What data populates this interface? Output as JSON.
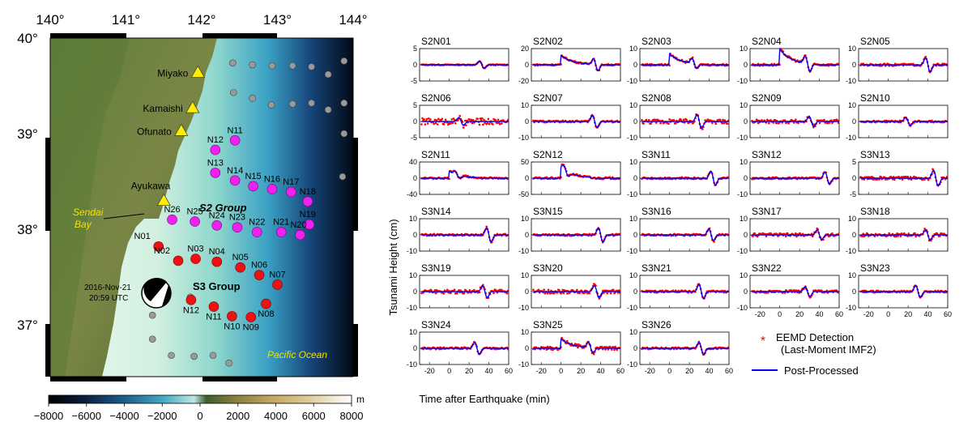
{
  "map": {
    "lon_ticks": [
      "140°",
      "141°",
      "142°",
      "143°",
      "144°"
    ],
    "lat_ticks": [
      "40°",
      "39°",
      "38°",
      "37°"
    ],
    "cities": [
      {
        "name": "Miyako",
        "lon": 141.95,
        "lat": 39.64
      },
      {
        "name": "Kamaishi",
        "lon": 141.88,
        "lat": 39.27
      },
      {
        "name": "Ofunato",
        "lon": 141.73,
        "lat": 39.03
      },
      {
        "name": "Ayukawa",
        "lon": 141.5,
        "lat": 38.3
      }
    ],
    "bay_label": "Sendai\nBay",
    "ocean_label": "Pacific Ocean",
    "s2_group_label": "S2 Group",
    "s3_group_label": "S3 Group",
    "event_date": "2016-Nov-21",
    "event_time": "20:59 UTC",
    "colorbar_unit": "m",
    "colorbar_ticks": [
      "−8000",
      "−6000",
      "−4000",
      "−2000",
      "0",
      "2000",
      "4000",
      "6000",
      "8000"
    ],
    "s2_stations": [
      {
        "name": "N11",
        "lon": 142.44,
        "lat": 38.93
      },
      {
        "name": "N12",
        "lon": 142.18,
        "lat": 38.83
      },
      {
        "name": "N13",
        "lon": 142.18,
        "lat": 38.59
      },
      {
        "name": "N14",
        "lon": 142.44,
        "lat": 38.51
      },
      {
        "name": "N15",
        "lon": 142.68,
        "lat": 38.45
      },
      {
        "name": "N16",
        "lon": 142.93,
        "lat": 38.42
      },
      {
        "name": "N17",
        "lon": 143.18,
        "lat": 38.39
      },
      {
        "name": "N18",
        "lon": 143.4,
        "lat": 38.29
      },
      {
        "name": "N19",
        "lon": 143.42,
        "lat": 38.05
      },
      {
        "name": "N20",
        "lon": 143.3,
        "lat": 37.94
      },
      {
        "name": "N21",
        "lon": 143.05,
        "lat": 37.97
      },
      {
        "name": "N22",
        "lon": 142.73,
        "lat": 37.97
      },
      {
        "name": "N23",
        "lon": 142.47,
        "lat": 38.02
      },
      {
        "name": "N24",
        "lon": 142.2,
        "lat": 38.04
      },
      {
        "name": "N25",
        "lon": 141.91,
        "lat": 38.08
      },
      {
        "name": "N26",
        "lon": 141.61,
        "lat": 38.1
      }
    ],
    "s3_stations": [
      {
        "name": "N01",
        "lon": 141.43,
        "lat": 37.82
      },
      {
        "name": "N02",
        "lon": 141.69,
        "lat": 37.67
      },
      {
        "name": "N03",
        "lon": 141.92,
        "lat": 37.69
      },
      {
        "name": "N04",
        "lon": 142.2,
        "lat": 37.66
      },
      {
        "name": "N05",
        "lon": 142.51,
        "lat": 37.6
      },
      {
        "name": "N06",
        "lon": 142.76,
        "lat": 37.52
      },
      {
        "name": "N07",
        "lon": 143.0,
        "lat": 37.42
      },
      {
        "name": "N08",
        "lon": 142.85,
        "lat": 37.22
      },
      {
        "name": "N09",
        "lon": 142.65,
        "lat": 37.08
      },
      {
        "name": "N10",
        "lon": 142.4,
        "lat": 37.09
      },
      {
        "name": "N11",
        "lon": 142.16,
        "lat": 37.19
      },
      {
        "name": "N12",
        "lon": 141.86,
        "lat": 37.26
      }
    ],
    "other_stations": [
      {
        "lon": 142.41,
        "lat": 39.74
      },
      {
        "lon": 142.67,
        "lat": 39.72
      },
      {
        "lon": 142.93,
        "lat": 39.71
      },
      {
        "lon": 143.2,
        "lat": 39.71
      },
      {
        "lon": 143.45,
        "lat": 39.7
      },
      {
        "lon": 143.67,
        "lat": 39.62
      },
      {
        "lon": 143.88,
        "lat": 39.76
      },
      {
        "lon": 142.42,
        "lat": 39.43
      },
      {
        "lon": 142.67,
        "lat": 39.37
      },
      {
        "lon": 142.92,
        "lat": 39.3
      },
      {
        "lon": 143.2,
        "lat": 39.31
      },
      {
        "lon": 143.45,
        "lat": 39.32
      },
      {
        "lon": 143.67,
        "lat": 39.25
      },
      {
        "lon": 143.88,
        "lat": 39.32
      },
      {
        "lon": 143.88,
        "lat": 39.0
      },
      {
        "lon": 143.86,
        "lat": 38.55
      },
      {
        "lon": 141.85,
        "lat": 37.29
      },
      {
        "lon": 141.35,
        "lat": 37.1
      },
      {
        "lon": 141.35,
        "lat": 36.85
      },
      {
        "lon": 141.6,
        "lat": 36.68
      },
      {
        "lon": 141.9,
        "lat": 36.67
      },
      {
        "lon": 142.15,
        "lat": 36.68
      },
      {
        "lon": 142.36,
        "lat": 36.6
      }
    ]
  },
  "chart_data": {
    "type": "line",
    "layout": "small multiples 6x5",
    "xlabel": "Time after Earthquake (min)",
    "ylabel": "Tsunami Height (cm)",
    "x_ticks": [
      -20,
      0,
      20,
      40,
      60
    ],
    "xlim": [
      -30,
      60
    ],
    "legend": [
      {
        "label": "EEMD Detection\n(Last-Moment IMF2)",
        "marker": "star",
        "color": "#ff0000"
      },
      {
        "label": "Post-Processed",
        "marker": "line",
        "color": "#0000ff"
      }
    ],
    "panels": [
      {
        "title": "S2N01",
        "ylim": [
          -5,
          5
        ],
        "yticks": [
          -5,
          0,
          5
        ],
        "arrival": 33,
        "amp": 1.8,
        "spike": 0,
        "noise": 0.15
      },
      {
        "title": "S2N02",
        "ylim": [
          -20,
          20
        ],
        "yticks": [
          -20,
          0,
          20
        ],
        "arrival": 35,
        "amp": 12,
        "spike": 12,
        "noise": 1.0
      },
      {
        "title": "S2N03",
        "ylim": [
          -10,
          10
        ],
        "yticks": [
          -10,
          0,
          10
        ],
        "arrival": 25,
        "amp": 5,
        "spike": 7,
        "noise": 0.6
      },
      {
        "title": "S2N04",
        "ylim": [
          -10,
          10
        ],
        "yticks": [
          -10,
          0,
          10
        ],
        "arrival": 28,
        "amp": 7,
        "spike": 10,
        "noise": 0.7
      },
      {
        "title": "S2N05",
        "ylim": [
          -10,
          10
        ],
        "yticks": [
          -10,
          0,
          10
        ],
        "arrival": 40,
        "amp": 7,
        "spike": 0,
        "noise": 0.7
      },
      {
        "title": "S2N06",
        "ylim": [
          -5,
          5
        ],
        "yticks": [
          -5,
          0,
          5
        ],
        "arrival": 12,
        "amp": 2,
        "spike": 0,
        "noise": 1.0
      },
      {
        "title": "S2N07",
        "ylim": [
          -10,
          10
        ],
        "yticks": [
          -10,
          0,
          10
        ],
        "arrival": 34,
        "amp": 6,
        "spike": 0,
        "noise": 0.6
      },
      {
        "title": "S2N08",
        "ylim": [
          -10,
          10
        ],
        "yticks": [
          -10,
          0,
          10
        ],
        "arrival": 30,
        "amp": 7,
        "spike": 0,
        "noise": 1.5
      },
      {
        "title": "S2N09",
        "ylim": [
          -10,
          10
        ],
        "yticks": [
          -10,
          0,
          10
        ],
        "arrival": 32,
        "amp": 5,
        "spike": 0,
        "noise": 1.2
      },
      {
        "title": "S2N10",
        "ylim": [
          -10,
          10
        ],
        "yticks": [
          -10,
          0,
          10
        ],
        "arrival": 20,
        "amp": 4,
        "spike": 0,
        "noise": 0.6
      },
      {
        "title": "S2N11",
        "ylim": [
          -40,
          40
        ],
        "yticks": [
          -40,
          0,
          40
        ],
        "arrival": 8,
        "amp": 12,
        "spike": 18,
        "noise": 2
      },
      {
        "title": "S2N12",
        "ylim": [
          -50,
          50
        ],
        "yticks": [
          -50,
          0,
          50
        ],
        "arrival": 5,
        "amp": 20,
        "spike": 35,
        "noise": 3
      },
      {
        "title": "S3N11",
        "ylim": [
          -10,
          10
        ],
        "yticks": [
          -10,
          0,
          10
        ],
        "arrival": 44,
        "amp": 7,
        "spike": 0,
        "noise": 0.6
      },
      {
        "title": "S3N12",
        "ylim": [
          -10,
          10
        ],
        "yticks": [
          -10,
          0,
          10
        ],
        "arrival": 48,
        "amp": 6,
        "spike": 0,
        "noise": 0.6
      },
      {
        "title": "S3N13",
        "ylim": [
          -5,
          5
        ],
        "yticks": [
          -5,
          0,
          5
        ],
        "arrival": 48,
        "amp": 4,
        "spike": 0,
        "noise": 0.5
      },
      {
        "title": "S3N14",
        "ylim": [
          -10,
          10
        ],
        "yticks": [
          -10,
          0,
          10
        ],
        "arrival": 40,
        "amp": 7,
        "spike": 0,
        "noise": 0.6
      },
      {
        "title": "S3N15",
        "ylim": [
          -10,
          10
        ],
        "yticks": [
          -10,
          0,
          10
        ],
        "arrival": 40,
        "amp": 7,
        "spike": 0,
        "noise": 0.6
      },
      {
        "title": "S3N16",
        "ylim": [
          -10,
          10
        ],
        "yticks": [
          -10,
          0,
          10
        ],
        "arrival": 42,
        "amp": 6,
        "spike": 0,
        "noise": 0.6
      },
      {
        "title": "S3N17",
        "ylim": [
          -10,
          10
        ],
        "yticks": [
          -10,
          0,
          10
        ],
        "arrival": 40,
        "amp": 5,
        "spike": 0,
        "noise": 1.0
      },
      {
        "title": "S3N18",
        "ylim": [
          -10,
          10
        ],
        "yticks": [
          -10,
          0,
          10
        ],
        "arrival": 40,
        "amp": 5,
        "spike": 0,
        "noise": 1.0
      },
      {
        "title": "S3N19",
        "ylim": [
          -10,
          10
        ],
        "yticks": [
          -10,
          0,
          10
        ],
        "arrival": 36,
        "amp": 6,
        "spike": 0,
        "noise": 1.2
      },
      {
        "title": "S3N20",
        "ylim": [
          -10,
          10
        ],
        "yticks": [
          -10,
          0,
          10
        ],
        "arrival": 36,
        "amp": 6,
        "spike": 0,
        "noise": 1.2
      },
      {
        "title": "S3N21",
        "ylim": [
          -10,
          10
        ],
        "yticks": [
          -10,
          0,
          10
        ],
        "arrival": 32,
        "amp": 7,
        "spike": 0,
        "noise": 0.7
      },
      {
        "title": "S3N22",
        "ylim": [
          -10,
          10
        ],
        "yticks": [
          -10,
          0,
          10
        ],
        "arrival": 28,
        "amp": 5,
        "spike": 0,
        "noise": 0.8
      },
      {
        "title": "S3N23",
        "ylim": [
          -10,
          10
        ],
        "yticks": [
          -10,
          0,
          10
        ],
        "arrival": 30,
        "amp": 6,
        "spike": 0,
        "noise": 0.6
      },
      {
        "title": "S3N24",
        "ylim": [
          -10,
          10
        ],
        "yticks": [
          -10,
          0,
          10
        ],
        "arrival": 28,
        "amp": 6,
        "spike": 0,
        "noise": 0.6
      },
      {
        "title": "S3N25",
        "ylim": [
          -10,
          10
        ],
        "yticks": [
          -10,
          0,
          10
        ],
        "arrival": 30,
        "amp": 5,
        "spike": 6,
        "noise": 1.0
      },
      {
        "title": "S3N26",
        "ylim": [
          -10,
          10
        ],
        "yticks": [
          -10,
          0,
          10
        ],
        "arrival": 32,
        "amp": 6,
        "spike": 0,
        "noise": 0.6
      }
    ]
  }
}
